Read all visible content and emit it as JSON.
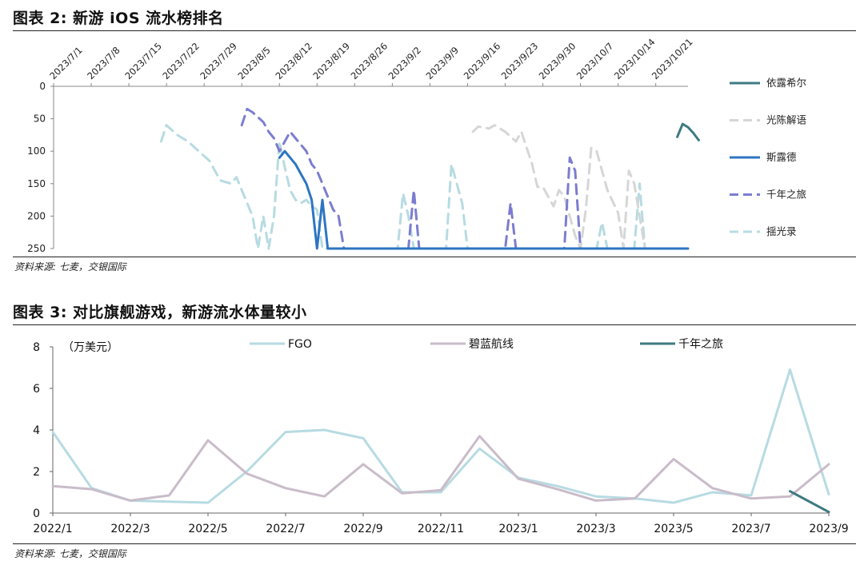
{
  "figures": [
    {
      "title": "图表 2: 新游 iOS 流水榜排名",
      "source": "资料来源: 七麦，交银国际"
    },
    {
      "title": "图表 3: 对比旗舰游戏，新游流水体量较小",
      "source": "资料来源: 七麦，交银国际"
    }
  ],
  "chart_data": [
    {
      "type": "line",
      "title": "",
      "x_tick_labels": [
        "2023/7/1",
        "2023/7/8",
        "2023/7/15",
        "2023/7/22",
        "2023/7/29",
        "2023/8/5",
        "2023/8/12",
        "2023/8/19",
        "2023/8/26",
        "2023/9/2",
        "2023/9/9",
        "2023/9/16",
        "2023/9/23",
        "2023/9/30",
        "2023/10/7",
        "2023/10/14",
        "2023/10/21"
      ],
      "x_range": [
        "2023/7/1",
        "2023/10/27"
      ],
      "y_ticks": [
        0,
        50,
        100,
        150,
        200,
        250
      ],
      "ylim": [
        0,
        250
      ],
      "y_inverted": true,
      "legend_position": "right",
      "series": [
        {
          "name": "依露希尔",
          "color": "#3d7a82",
          "dash": "solid",
          "points": [
            [
              "2023/10/25",
              78
            ],
            [
              "2023/10/26",
              58
            ],
            [
              "2023/10/27",
              63
            ],
            [
              "2023/10/28",
              72
            ],
            [
              "2023/10/29",
              83
            ]
          ]
        },
        {
          "name": "光陈解语",
          "color": "#d6d6d6",
          "dash": "dashed",
          "points": [
            [
              "2023/9/17",
              70
            ],
            [
              "2023/9/18",
              62
            ],
            [
              "2023/9/20",
              65
            ],
            [
              "2023/9/21",
              60
            ],
            [
              "2023/9/23",
              70
            ],
            [
              "2023/9/25",
              85
            ],
            [
              "2023/9/26",
              70
            ],
            [
              "2023/9/27",
              95
            ],
            [
              "2023/9/28",
              120
            ],
            [
              "2023/9/29",
              155
            ],
            [
              "2023/9/30",
              155
            ],
            [
              "2023/10/2",
              185
            ],
            [
              "2023/10/3",
              160
            ],
            [
              "2023/10/4",
              170
            ],
            [
              "2023/10/6",
              230
            ],
            [
              "2023/10/7",
              250
            ],
            [
              "2023/10/8",
              190
            ],
            [
              "2023/10/9",
              95
            ],
            [
              "2023/10/10",
              100
            ],
            [
              "2023/10/11",
              130
            ],
            [
              "2023/10/12",
              160
            ],
            [
              "2023/10/14",
              195
            ],
            [
              "2023/10/15",
              250
            ],
            [
              "2023/10/16",
              130
            ],
            [
              "2023/10/17",
              150
            ],
            [
              "2023/10/18",
              200
            ],
            [
              "2023/10/19",
              250
            ]
          ]
        },
        {
          "name": "斯露德",
          "color": "#2e75c3",
          "dash": "solid",
          "points": [
            [
              "2023/8/12",
              110
            ],
            [
              "2023/8/13",
              100
            ],
            [
              "2023/8/14",
              110
            ],
            [
              "2023/8/15",
              120
            ],
            [
              "2023/8/16",
              135
            ],
            [
              "2023/8/17",
              150
            ],
            [
              "2023/8/18",
              175
            ],
            [
              "2023/8/19",
              250
            ],
            [
              "2023/8/20",
              175
            ],
            [
              "2023/8/21",
              250
            ],
            [
              "2023/10/27",
              250
            ]
          ]
        },
        {
          "name": "千年之旅",
          "color": "#7c7dd0",
          "dash": "dashed",
          "points": [
            [
              "2023/8/5",
              60
            ],
            [
              "2023/8/6",
              35
            ],
            [
              "2023/8/7",
              40
            ],
            [
              "2023/8/9",
              55
            ],
            [
              "2023/8/10",
              70
            ],
            [
              "2023/8/11",
              80
            ],
            [
              "2023/8/12",
              100
            ],
            [
              "2023/8/13",
              85
            ],
            [
              "2023/8/14",
              70
            ],
            [
              "2023/8/15",
              80
            ],
            [
              "2023/8/17",
              100
            ],
            [
              "2023/8/18",
              120
            ],
            [
              "2023/8/19",
              130
            ],
            [
              "2023/8/20",
              150
            ],
            [
              "2023/8/21",
              170
            ],
            [
              "2023/8/22",
              190
            ],
            [
              "2023/8/23",
              200
            ],
            [
              "2023/8/24",
              250
            ],
            [
              "2023/9/5",
              250
            ],
            [
              "2023/9/6",
              160
            ],
            [
              "2023/9/7",
              250
            ],
            [
              "2023/9/23",
              250
            ],
            [
              "2023/9/24",
              180
            ],
            [
              "2023/9/25",
              250
            ],
            [
              "2023/10/4",
              250
            ],
            [
              "2023/10/5",
              110
            ],
            [
              "2023/10/6",
              130
            ],
            [
              "2023/10/7",
              250
            ],
            [
              "2023/10/27",
              250
            ]
          ]
        },
        {
          "name": "揺光录",
          "color": "#b7dbe2",
          "dash": "dashed",
          "points": [
            [
              "2023/7/21",
              85
            ],
            [
              "2023/7/22",
              60
            ],
            [
              "2023/7/24",
              75
            ],
            [
              "2023/7/26",
              85
            ],
            [
              "2023/7/28",
              100
            ],
            [
              "2023/7/30",
              115
            ],
            [
              "2023/8/1",
              145
            ],
            [
              "2023/8/3",
              150
            ],
            [
              "2023/8/4",
              140
            ],
            [
              "2023/8/5",
              160
            ],
            [
              "2023/8/7",
              200
            ],
            [
              "2023/8/8",
              250
            ],
            [
              "2023/8/9",
              200
            ],
            [
              "2023/8/10",
              250
            ],
            [
              "2023/8/11",
              200
            ],
            [
              "2023/8/12",
              85
            ],
            [
              "2023/8/13",
              125
            ],
            [
              "2023/8/14",
              160
            ],
            [
              "2023/8/15",
              175
            ],
            [
              "2023/8/16",
              180
            ],
            [
              "2023/8/17",
              175
            ],
            [
              "2023/8/18",
              185
            ],
            [
              "2023/8/19",
              190
            ],
            [
              "2023/8/20",
              250
            ],
            [
              "2023/9/3",
              250
            ],
            [
              "2023/9/4",
              165
            ],
            [
              "2023/9/5",
              200
            ],
            [
              "2023/9/6",
              250
            ],
            [
              "2023/9/12",
              250
            ],
            [
              "2023/9/13",
              120
            ],
            [
              "2023/9/14",
              150
            ],
            [
              "2023/9/15",
              180
            ],
            [
              "2023/9/16",
              250
            ],
            [
              "2023/10/10",
              250
            ],
            [
              "2023/10/11",
              210
            ],
            [
              "2023/10/12",
              250
            ],
            [
              "2023/10/17",
              250
            ],
            [
              "2023/10/18",
              150
            ],
            [
              "2023/10/19",
              250
            ],
            [
              "2023/10/27",
              250
            ]
          ]
        }
      ]
    },
    {
      "type": "line",
      "title": "",
      "unit_label": "（万美元）",
      "categories": [
        "2022/1",
        "2022/2",
        "2022/3",
        "2022/4",
        "2022/5",
        "2022/6",
        "2022/7",
        "2022/8",
        "2022/9",
        "2022/10",
        "2022/11",
        "2022/12",
        "2023/1",
        "2023/2",
        "2023/3",
        "2023/4",
        "2023/5",
        "2023/6",
        "2023/7",
        "2023/8",
        "2023/9"
      ],
      "x_tick_labels": [
        "2022/1",
        "2022/3",
        "2022/5",
        "2022/7",
        "2022/9",
        "2022/11",
        "2023/1",
        "2023/3",
        "2023/5",
        "2023/7",
        "2023/9"
      ],
      "ylim": [
        0,
        8
      ],
      "y_ticks": [
        0,
        2,
        4,
        6,
        8
      ],
      "legend_position": "top",
      "series": [
        {
          "name": "FGO",
          "color": "#b7dbe2",
          "values": [
            3.9,
            1.2,
            0.6,
            0.55,
            0.5,
            2.0,
            3.9,
            4.0,
            3.6,
            1.0,
            1.0,
            3.1,
            1.7,
            1.3,
            0.8,
            0.7,
            0.5,
            1.0,
            0.85,
            6.9,
            0.9
          ]
        },
        {
          "name": "碧蓝航线",
          "color": "#c9bcc9",
          "values": [
            1.3,
            1.15,
            0.6,
            0.85,
            3.5,
            1.9,
            1.2,
            0.8,
            2.35,
            0.95,
            1.1,
            3.7,
            1.65,
            1.15,
            0.6,
            0.7,
            2.6,
            1.2,
            0.7,
            0.8,
            2.35
          ]
        },
        {
          "name": "千年之旅",
          "color": "#3d7a82",
          "values": [
            null,
            null,
            null,
            null,
            null,
            null,
            null,
            null,
            null,
            null,
            null,
            null,
            null,
            null,
            null,
            null,
            null,
            null,
            null,
            1.05,
            0.05
          ]
        }
      ]
    }
  ]
}
